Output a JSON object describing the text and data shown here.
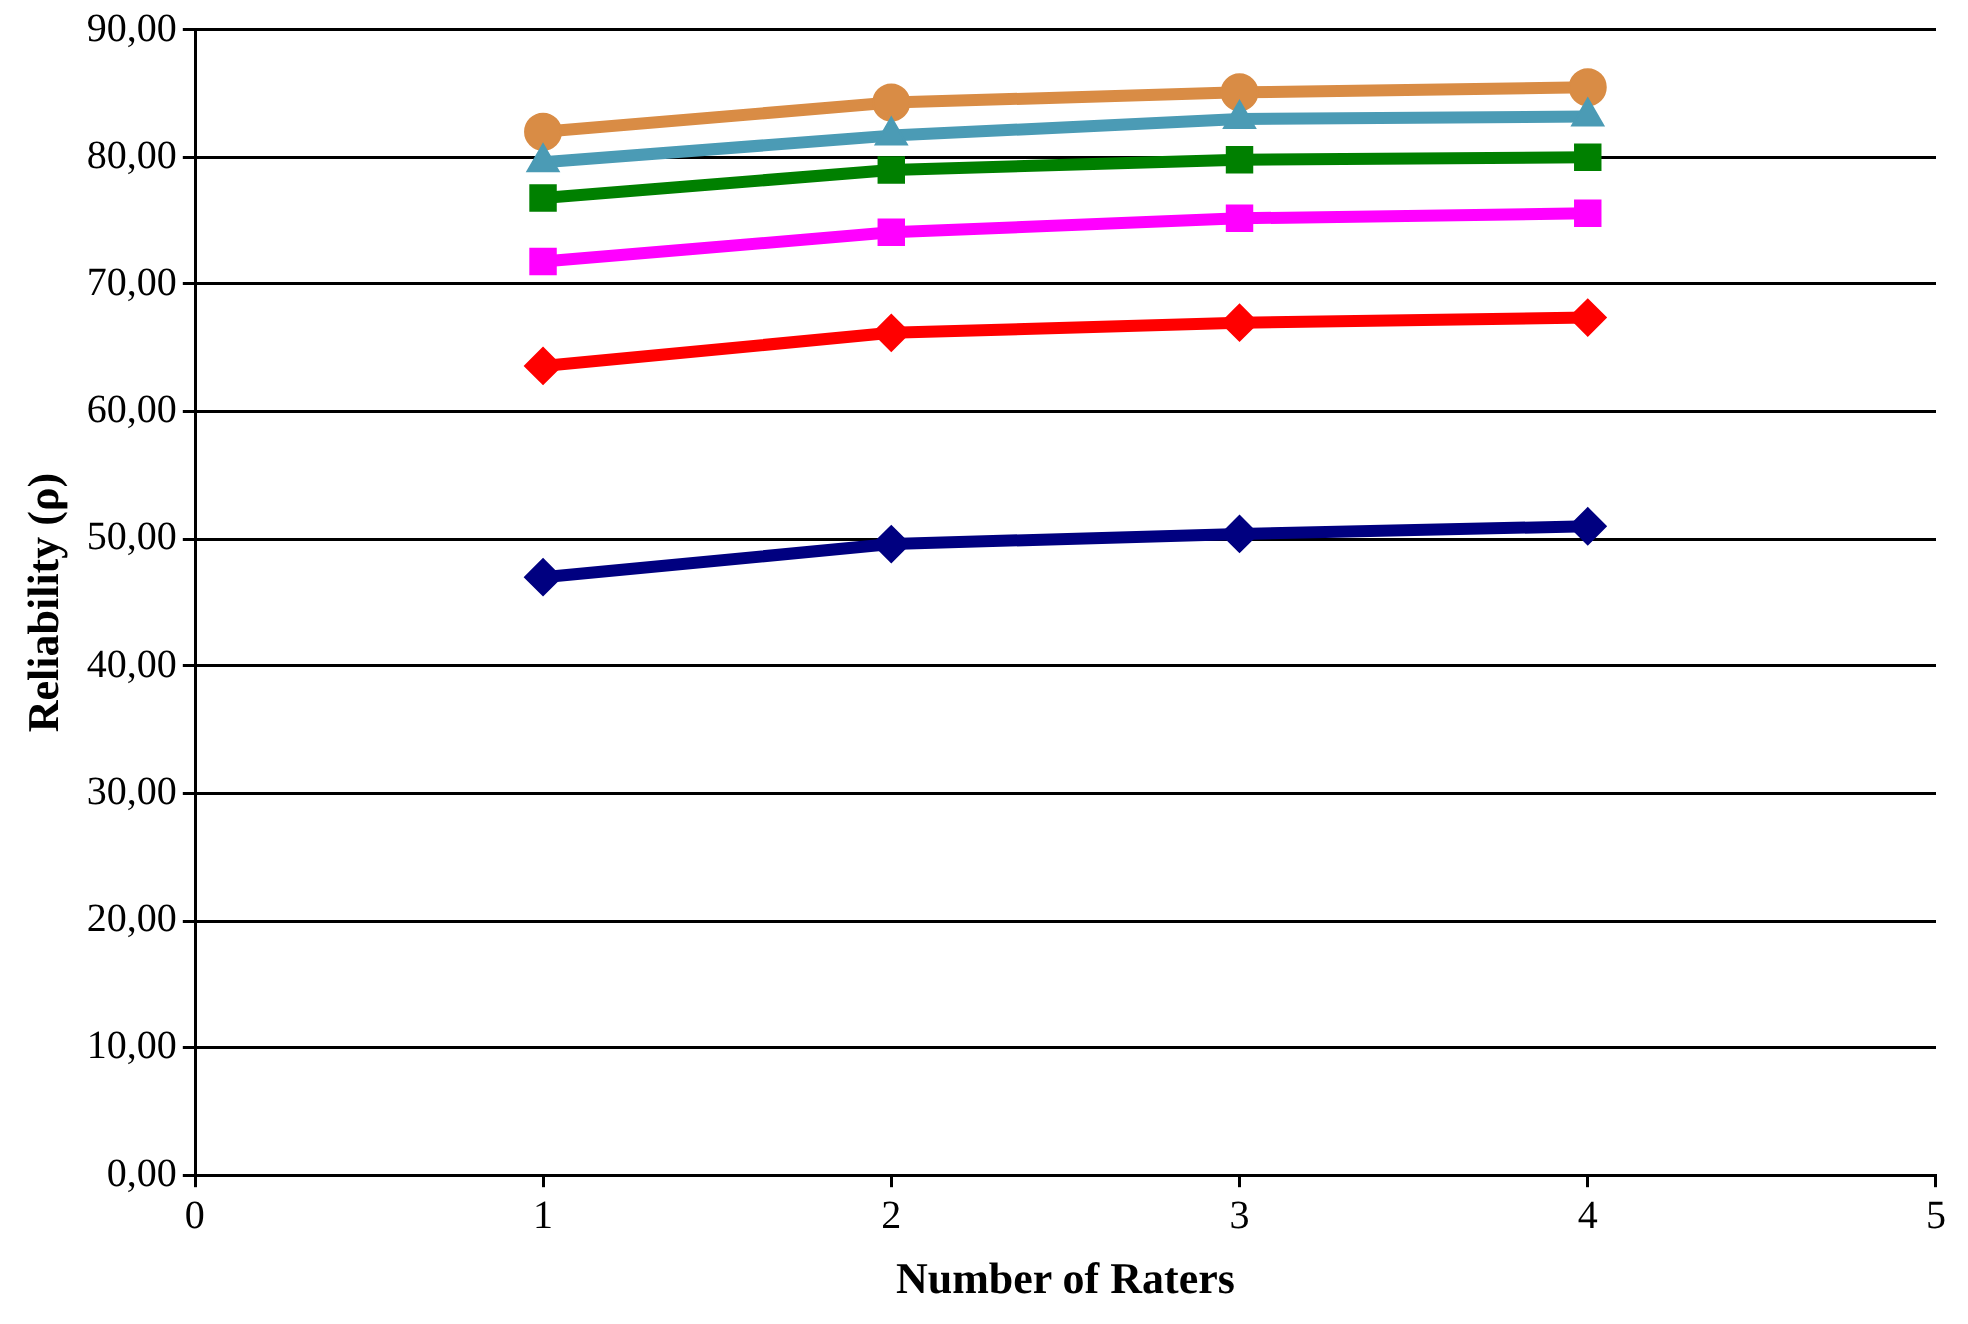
{
  "chart_data": {
    "type": "line",
    "xlabel": "Number of Raters",
    "ylabel": "Reliability (ρ)",
    "x": [
      1,
      2,
      3,
      4
    ],
    "series": [
      {
        "color": "#000080",
        "marker": "diamond",
        "values": [
          47.0,
          49.6,
          50.4,
          51.0
        ]
      },
      {
        "color": "#ff0000",
        "marker": "diamond",
        "values": [
          63.6,
          66.2,
          67.0,
          67.4
        ]
      },
      {
        "color": "#ff00ff",
        "marker": "square",
        "values": [
          71.8,
          74.1,
          75.2,
          75.6
        ]
      },
      {
        "color": "#008000",
        "marker": "square",
        "values": [
          76.8,
          79.0,
          79.8,
          80.0
        ]
      },
      {
        "color": "#4b9bb5",
        "marker": "triangle",
        "values": [
          79.6,
          81.7,
          83.0,
          83.2
        ]
      },
      {
        "color": "#d98c45",
        "marker": "circle",
        "values": [
          82.0,
          84.3,
          85.1,
          85.5
        ]
      }
    ],
    "xlim": [
      0,
      5
    ],
    "xticks": [
      0,
      1,
      2,
      3,
      4,
      5
    ],
    "ylim": [
      0,
      90
    ],
    "yticks": [
      {
        "value": 0,
        "label": "0,00"
      },
      {
        "value": 10,
        "label": "10,00"
      },
      {
        "value": 20,
        "label": "20,00"
      },
      {
        "value": 30,
        "label": "30,00"
      },
      {
        "value": 40,
        "label": "40,00"
      },
      {
        "value": 50,
        "label": "50,00"
      },
      {
        "value": 60,
        "label": "60,00"
      },
      {
        "value": 70,
        "label": "70,00"
      },
      {
        "value": 80,
        "label": "80,00"
      },
      {
        "value": 90,
        "label": "90,00"
      }
    ],
    "grid": "y",
    "legend": false
  }
}
